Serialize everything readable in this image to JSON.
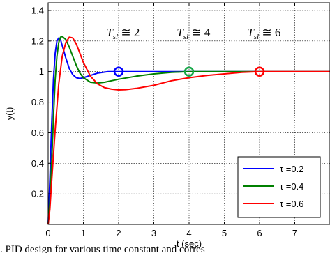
{
  "chart_data": {
    "type": "line",
    "xlabel": "t (sec)",
    "ylabel": "y(t)",
    "xlim": [
      0,
      8
    ],
    "ylim": [
      0,
      1.45
    ],
    "xticks": [
      "0",
      "1",
      "2",
      "3",
      "4",
      "5",
      "6",
      "7"
    ],
    "yticks": [
      "0.2",
      "0.4",
      "0.6",
      "0.8",
      "1",
      "1.2",
      "1.4"
    ],
    "grid": true,
    "legend_position": "bottom-right",
    "series": [
      {
        "name": "τ =0.2",
        "color": "#0000ff",
        "points": [
          [
            0,
            0
          ],
          [
            0.05,
            0.3
          ],
          [
            0.1,
            0.65
          ],
          [
            0.15,
            0.95
          ],
          [
            0.2,
            1.12
          ],
          [
            0.25,
            1.2
          ],
          [
            0.3,
            1.22
          ],
          [
            0.35,
            1.21
          ],
          [
            0.4,
            1.17
          ],
          [
            0.5,
            1.09
          ],
          [
            0.6,
            1.02
          ],
          [
            0.7,
            0.98
          ],
          [
            0.8,
            0.96
          ],
          [
            0.9,
            0.955
          ],
          [
            1.0,
            0.96
          ],
          [
            1.2,
            0.975
          ],
          [
            1.4,
            0.99
          ],
          [
            1.7,
            1.0
          ],
          [
            2.0,
            1.0
          ],
          [
            3.0,
            1.0
          ],
          [
            5.0,
            1.0
          ],
          [
            8.0,
            1.0
          ]
        ]
      },
      {
        "name": "τ =0.4",
        "color": "#008000",
        "points": [
          [
            0,
            0
          ],
          [
            0.05,
            0.15
          ],
          [
            0.1,
            0.4
          ],
          [
            0.15,
            0.7
          ],
          [
            0.2,
            0.95
          ],
          [
            0.25,
            1.1
          ],
          [
            0.3,
            1.19
          ],
          [
            0.35,
            1.225
          ],
          [
            0.4,
            1.23
          ],
          [
            0.5,
            1.21
          ],
          [
            0.6,
            1.16
          ],
          [
            0.7,
            1.1
          ],
          [
            0.8,
            1.04
          ],
          [
            0.9,
            0.99
          ],
          [
            1.0,
            0.96
          ],
          [
            1.2,
            0.93
          ],
          [
            1.4,
            0.925
          ],
          [
            1.6,
            0.93
          ],
          [
            1.8,
            0.94
          ],
          [
            2.0,
            0.95
          ],
          [
            2.5,
            0.97
          ],
          [
            3.0,
            0.985
          ],
          [
            3.5,
            0.995
          ],
          [
            4.0,
            1.0
          ],
          [
            5.0,
            1.0
          ],
          [
            8.0,
            1.0
          ]
        ]
      },
      {
        "name": "τ =0.6",
        "color": "#ff0000",
        "points": [
          [
            0,
            0
          ],
          [
            0.05,
            0.1
          ],
          [
            0.1,
            0.28
          ],
          [
            0.2,
            0.62
          ],
          [
            0.3,
            0.92
          ],
          [
            0.4,
            1.1
          ],
          [
            0.5,
            1.19
          ],
          [
            0.6,
            1.225
          ],
          [
            0.7,
            1.22
          ],
          [
            0.8,
            1.18
          ],
          [
            0.9,
            1.12
          ],
          [
            1.0,
            1.06
          ],
          [
            1.2,
            0.97
          ],
          [
            1.4,
            0.92
          ],
          [
            1.6,
            0.895
          ],
          [
            1.8,
            0.885
          ],
          [
            2.0,
            0.88
          ],
          [
            2.2,
            0.882
          ],
          [
            2.5,
            0.89
          ],
          [
            3.0,
            0.91
          ],
          [
            3.5,
            0.94
          ],
          [
            4.0,
            0.96
          ],
          [
            4.5,
            0.975
          ],
          [
            5.0,
            0.985
          ],
          [
            5.5,
            0.995
          ],
          [
            6.0,
            1.0
          ],
          [
            7.0,
            1.0
          ],
          [
            8.0,
            1.0
          ]
        ]
      }
    ],
    "markers": [
      {
        "x": 2,
        "y": 1.0,
        "color": "#0000ff"
      },
      {
        "x": 4,
        "y": 1.0,
        "color": "#18a84a"
      },
      {
        "x": 6,
        "y": 1.0,
        "color": "#ff0000"
      }
    ],
    "annotations": [
      {
        "symbol": "T",
        "sub": "sl",
        "text": " ≅ 2",
        "x": 1.65,
        "y": 1.23
      },
      {
        "symbol": "T",
        "sub": "sl",
        "text": " ≅ 4",
        "x": 3.65,
        "y": 1.23
      },
      {
        "symbol": "T",
        "sub": "sl",
        "text": " ≅ 6",
        "x": 5.65,
        "y": 1.23
      }
    ],
    "caption": ". PID design for various time constant and corres"
  }
}
